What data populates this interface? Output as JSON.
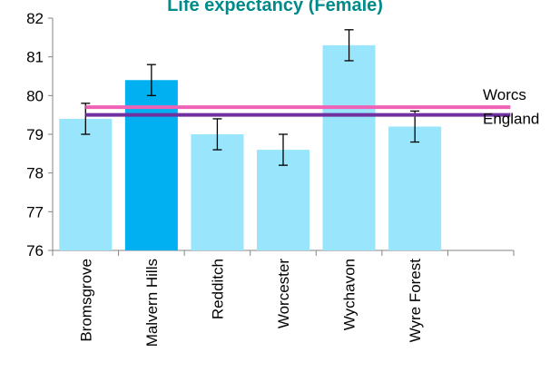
{
  "chart_data": {
    "type": "bar",
    "title": "Life expectancy (Female)",
    "title_color": "#008B8B",
    "categories": [
      "Bromsgrove",
      "Malvern Hills",
      "Redditch",
      "Worcester",
      "Wychavon",
      "Wyre Forest"
    ],
    "values": [
      79.4,
      80.4,
      79.0,
      78.6,
      81.3,
      79.2
    ],
    "error_low": [
      79.0,
      80.0,
      78.6,
      78.2,
      80.9,
      78.8
    ],
    "error_high": [
      79.8,
      80.8,
      79.4,
      79.0,
      81.7,
      79.6
    ],
    "highlight_index": 1,
    "bar_color": "#99E6FC",
    "highlight_color": "#00B0F0",
    "ylim": [
      76,
      82
    ],
    "yticks": [
      76,
      77,
      78,
      79,
      80,
      81,
      82
    ],
    "grid": false,
    "reference_lines": [
      {
        "name": "Worcs",
        "value": 79.7,
        "color": "#F062B6"
      },
      {
        "name": "England",
        "value": 79.5,
        "color": "#7030A0"
      }
    ]
  }
}
